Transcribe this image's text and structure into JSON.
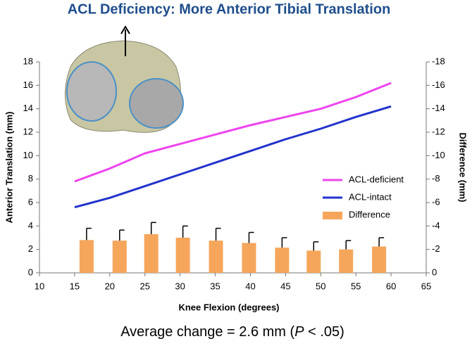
{
  "chart_data": {
    "type": "line",
    "title": "ACL Deficiency: More Anterior Tibial Translation",
    "x_label": "Knee Flexion (degrees)",
    "y_label": "Anterior Translation (mm)",
    "y2_label": "Difference (mm)",
    "annotation": [
      "Average change = 2.6 mm (",
      "P",
      " < .05)"
    ],
    "x": [
      15,
      20,
      25,
      30,
      35,
      40,
      45,
      50,
      55,
      60
    ],
    "series": [
      {
        "name": "ACL-deficient",
        "color": "#ee44ee",
        "values": [
          7.8,
          8.9,
          10.2,
          11.0,
          11.8,
          12.6,
          13.3,
          14.0,
          15.0,
          16.2
        ]
      },
      {
        "name": "ACL-intact",
        "color": "#2233cc",
        "values": [
          5.6,
          6.4,
          7.4,
          8.4,
          9.4,
          10.4,
          11.4,
          12.3,
          13.3,
          14.2
        ]
      },
      {
        "name": "Difference",
        "color": "#f5a65b",
        "type": "bar",
        "axis": "y2",
        "x": [
          16.7,
          21.4,
          25.9,
          30.4,
          35.1,
          39.8,
          44.5,
          49,
          53.6,
          58.3
        ],
        "values": [
          -2.8,
          -2.75,
          -3.3,
          -3.0,
          -2.75,
          -2.55,
          -2.15,
          -1.9,
          -2.0,
          -2.25
        ],
        "errors": [
          1.0,
          0.9,
          1.0,
          1.0,
          1.05,
          0.9,
          0.85,
          0.75,
          0.75,
          0.75
        ]
      }
    ],
    "xlim": [
      10,
      65
    ],
    "xticks": [
      10,
      15,
      20,
      25,
      30,
      35,
      40,
      45,
      50,
      55,
      60,
      65
    ],
    "ylim": [
      0,
      18
    ],
    "yticks": [
      0,
      2,
      4,
      6,
      8,
      10,
      12,
      14,
      16,
      18
    ],
    "y2lim": [
      0,
      -18
    ],
    "y2ticks": [
      0,
      -2,
      -4,
      -6,
      -8,
      -10,
      -12,
      -14,
      -16,
      -18
    ]
  }
}
